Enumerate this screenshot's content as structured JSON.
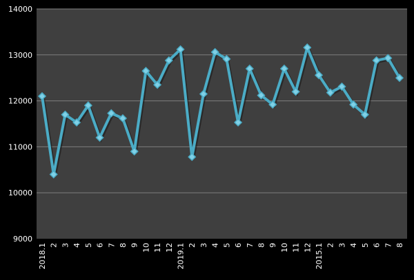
{
  "chart_data": {
    "type": "line",
    "categories": [
      "2018.1",
      "2",
      "3",
      "4",
      "5",
      "6",
      "7",
      "8",
      "9",
      "10",
      "11",
      "12",
      "2019.1",
      "2",
      "3",
      "4",
      "5",
      "6",
      "7",
      "8",
      "9",
      "10",
      "11",
      "12",
      "2015.1",
      "2",
      "3",
      "4",
      "5",
      "6",
      "7",
      "8"
    ],
    "series": [
      {
        "values": [
          12100,
          10400,
          11700,
          11530,
          11900,
          11200,
          11730,
          11620,
          10900,
          12650,
          12350,
          12880,
          13120,
          10780,
          12150,
          13060,
          12910,
          11530,
          12700,
          12120,
          11920,
          12700,
          12200,
          13160,
          12560,
          12180,
          12310,
          11920,
          11700,
          12880,
          12930,
          12500
        ]
      }
    ],
    "xlabel": "",
    "ylabel": "",
    "ylim": [
      9000,
      14000
    ],
    "yticks": [
      9000,
      10000,
      11000,
      12000,
      13000,
      14000
    ],
    "grid": true,
    "colors": {
      "background": "#000000",
      "plot_area": "#3f3f3f",
      "gridline": "#7f7f7f",
      "line": "#4bacc6",
      "marker": "#4bacc6",
      "text": "#ffffff"
    }
  }
}
